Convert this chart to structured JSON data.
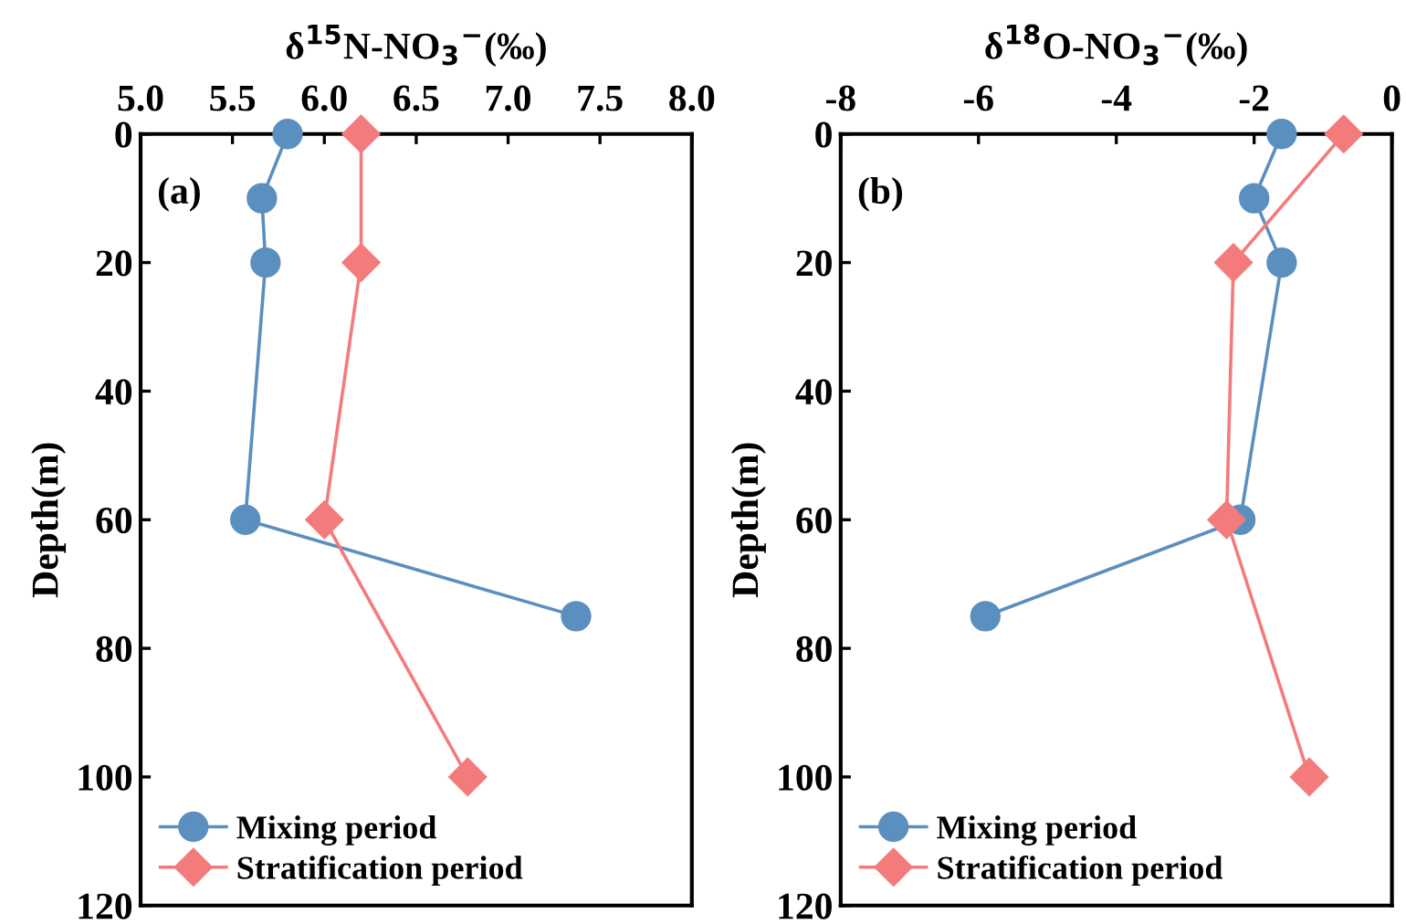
{
  "chart_data": [
    {
      "type": "line",
      "xlabel": "δ$^{15}$N-NO$_{3}$$^{−}$(‰)",
      "ylabel": "Depth(m)",
      "annotations": [
        "(a)"
      ],
      "xlim": [
        5.0,
        8.0
      ],
      "xticks": [
        {
          "value": 5.0,
          "label": "5.0"
        },
        {
          "value": 5.5,
          "label": "5.5"
        },
        {
          "value": 6.0,
          "label": "6.0"
        },
        {
          "value": 6.5,
          "label": "6.5"
        },
        {
          "value": 7.0,
          "label": "7.0"
        },
        {
          "value": 7.5,
          "label": "7.5"
        },
        {
          "value": 8.0,
          "label": "8.0"
        }
      ],
      "ylim": [
        120,
        0
      ],
      "yticks": [
        0,
        20,
        40,
        60,
        80,
        100,
        120
      ],
      "grid": false,
      "legend": "bottom left",
      "series": [
        {
          "name": "Mixing period",
          "color": "#5b8fbf",
          "marker": "circle",
          "x": [
            5.8,
            5.66,
            5.68,
            5.57,
            7.37
          ],
          "values": [
            0,
            10,
            20,
            60,
            75
          ]
        },
        {
          "name": "Stratification period",
          "color": "#f47b7b",
          "marker": "diamond",
          "x": [
            6.2,
            6.2,
            6.0,
            6.78
          ],
          "values": [
            0,
            20,
            60,
            100
          ]
        }
      ]
    },
    {
      "type": "line",
      "xlabel": "δ$^{18}$O-NO$_{3}$$^{−}$(‰)",
      "ylabel": "Depth(m)",
      "annotations": [
        "(b)"
      ],
      "xlim": [
        -8,
        0
      ],
      "xticks": [
        -8,
        -6,
        -4,
        -2,
        0
      ],
      "ylim": [
        120,
        0
      ],
      "yticks": [
        0,
        20,
        40,
        60,
        80,
        100,
        120
      ],
      "grid": false,
      "legend": "bottom left",
      "series": [
        {
          "name": "Mixing period",
          "color": "#5b8fbf",
          "marker": "circle",
          "x": [
            -1.6,
            -2.0,
            -1.6,
            -2.2,
            -5.9
          ],
          "values": [
            0,
            10,
            20,
            60,
            75
          ]
        },
        {
          "name": "Stratification period",
          "color": "#f47b7b",
          "marker": "diamond",
          "x": [
            -0.7,
            -2.3,
            -2.4,
            -1.2
          ],
          "values": [
            0,
            20,
            60,
            100
          ]
        }
      ]
    }
  ]
}
